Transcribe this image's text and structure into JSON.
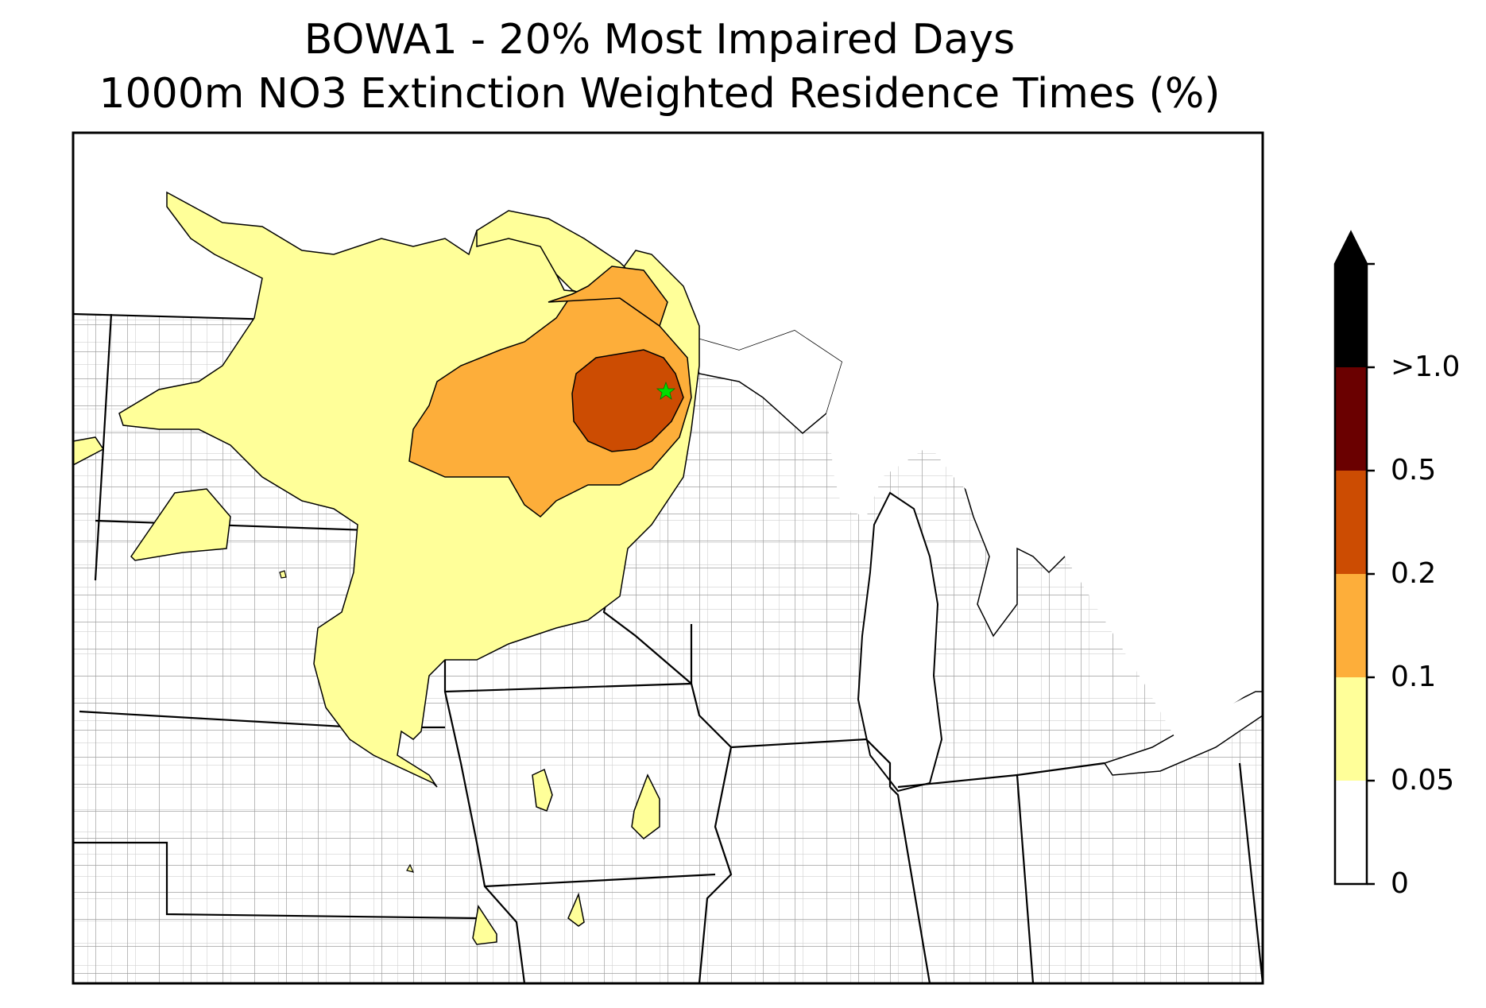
{
  "title": {
    "line1": "BOWA1 - 20% Most Impaired Days",
    "line2": "1000m NO3 Extinction Weighted Residence Times (%)"
  },
  "map": {
    "receptor_marker": "green-star-icon",
    "state_border_color": "#000000",
    "county_border_color": "#a0a0a0"
  },
  "colorbar": {
    "levels": [
      {
        "label": "0",
        "color": "#ffffff"
      },
      {
        "label": "0.05",
        "color": "#ffff99"
      },
      {
        "label": "0.1",
        "color": "#fdae3a"
      },
      {
        "label": "0.2",
        "color": "#cc4c02"
      },
      {
        "label": "0.5",
        "color": "#6a0000"
      },
      {
        "label": ">1.0",
        "color": "#000000"
      }
    ],
    "extend": "max"
  }
}
